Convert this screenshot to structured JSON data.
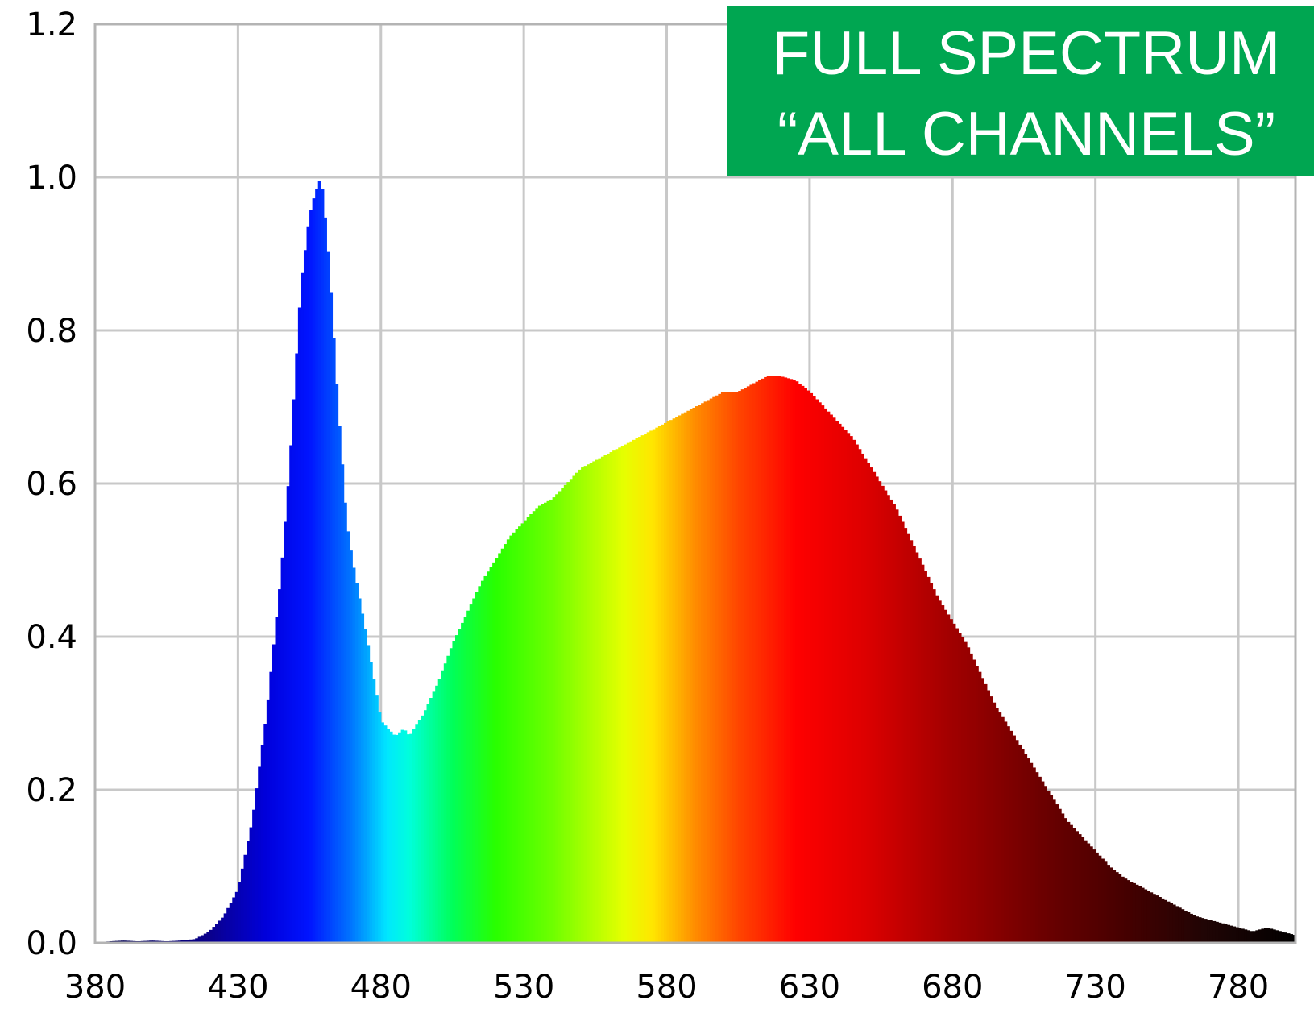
{
  "chart_data": {
    "type": "area",
    "title_lines": [
      "FULL SPECTRUM",
      "“ALL CHANNELS”"
    ],
    "badge_color": "#00A651",
    "xlabel": "",
    "ylabel": "",
    "xlim": [
      380,
      800
    ],
    "ylim": [
      0,
      1.2
    ],
    "x_ticks": [
      380,
      430,
      480,
      530,
      580,
      630,
      680,
      730,
      780
    ],
    "y_ticks": [
      "0.0",
      "0.2",
      "0.4",
      "0.6",
      "0.8",
      "1.0",
      "1.2"
    ],
    "grid": true,
    "fill": "wavelength-colored spectrum",
    "x": [
      380,
      385,
      390,
      395,
      400,
      405,
      410,
      415,
      420,
      425,
      430,
      435,
      440,
      445,
      448,
      450,
      452,
      455,
      457,
      459,
      460,
      462,
      465,
      468,
      470,
      475,
      480,
      485,
      488,
      490,
      495,
      500,
      505,
      510,
      515,
      520,
      525,
      530,
      535,
      540,
      545,
      550,
      555,
      560,
      565,
      570,
      575,
      580,
      585,
      590,
      595,
      600,
      605,
      610,
      615,
      620,
      625,
      630,
      635,
      640,
      645,
      650,
      655,
      660,
      665,
      670,
      675,
      680,
      685,
      690,
      695,
      700,
      705,
      710,
      715,
      720,
      725,
      730,
      735,
      740,
      745,
      750,
      755,
      760,
      765,
      770,
      775,
      780,
      785,
      790,
      795,
      800
    ],
    "y": [
      0.0,
      0.002,
      0.003,
      0.002,
      0.003,
      0.002,
      0.003,
      0.005,
      0.015,
      0.035,
      0.07,
      0.16,
      0.3,
      0.48,
      0.62,
      0.74,
      0.86,
      0.95,
      0.98,
      1.0,
      0.97,
      0.88,
      0.7,
      0.55,
      0.5,
      0.4,
      0.29,
      0.27,
      0.28,
      0.27,
      0.3,
      0.34,
      0.39,
      0.43,
      0.47,
      0.5,
      0.53,
      0.55,
      0.57,
      0.58,
      0.6,
      0.62,
      0.63,
      0.64,
      0.65,
      0.66,
      0.67,
      0.68,
      0.69,
      0.7,
      0.71,
      0.72,
      0.72,
      0.73,
      0.74,
      0.74,
      0.735,
      0.72,
      0.7,
      0.68,
      0.66,
      0.63,
      0.6,
      0.57,
      0.53,
      0.49,
      0.45,
      0.42,
      0.39,
      0.35,
      0.31,
      0.28,
      0.25,
      0.22,
      0.19,
      0.16,
      0.14,
      0.12,
      0.1,
      0.085,
      0.075,
      0.065,
      0.055,
      0.045,
      0.035,
      0.03,
      0.025,
      0.02,
      0.015,
      0.02,
      0.015,
      0.01
    ]
  }
}
